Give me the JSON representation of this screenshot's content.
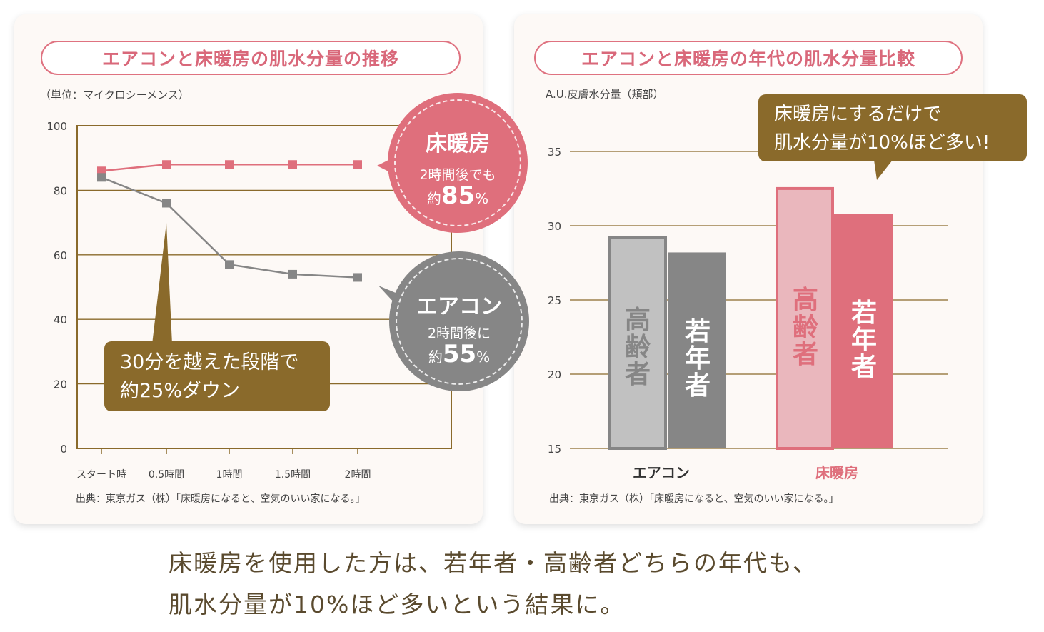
{
  "left": {
    "title": "エアコンと床暖房の肌水分量の推移",
    "unit": "（単位：マイクロシーメンス）",
    "source": "出典：東京ガス（株）「床暖房になると、空気のいい家になる。」",
    "callout": {
      "line1": "30分を越えた段階で",
      "line2": "約25%ダウン"
    },
    "badge_floor": {
      "title": "床暖房",
      "line1": "2時間後でも",
      "prefix": "約",
      "value": "85",
      "suffix": "%"
    },
    "badge_ac": {
      "title": "エアコン",
      "line1": "2時間後に",
      "prefix": "約",
      "value": "55",
      "suffix": "%"
    }
  },
  "right": {
    "title": "エアコンと床暖房の年代の肌水分量比較",
    "unit": "A.U.皮膚水分量（頬部）",
    "source": "出典：東京ガス（株）「床暖房になると、空気のいい家になる。」",
    "callout": {
      "line1": "床暖房にするだけで",
      "line2": "肌水分量が10%ほど多い!"
    },
    "bar_labels": {
      "elderly": "高齢者",
      "young": "若年者"
    }
  },
  "caption": {
    "line1": "床暖房を使用した方は、若年者・高齢者どちらの年代も、",
    "line2": "肌水分量が10%ほど多いという結果に。"
  },
  "colors": {
    "pink": "#df6f7c",
    "pink_light": "#eab7bd",
    "gray": "#868686",
    "gray_light": "#c1c1c1",
    "brown": "#8a6a2b",
    "grid": "#8a6a2b"
  },
  "chart_data": [
    {
      "type": "line",
      "title": "エアコンと床暖房の肌水分量の推移",
      "ylabel": "（単位：マイクロシーメンス）",
      "ylim": [
        0,
        100
      ],
      "yticks": [
        0,
        20,
        40,
        60,
        80,
        100
      ],
      "categories": [
        "スタート時",
        "0.5時間",
        "1時間",
        "1.5時間",
        "2時間"
      ],
      "series": [
        {
          "name": "床暖房",
          "color": "#df6f7c",
          "values": [
            86,
            88,
            88,
            88,
            88
          ]
        },
        {
          "name": "エアコン",
          "color": "#868686",
          "values": [
            84,
            76,
            57,
            54,
            53
          ]
        }
      ],
      "grid": true
    },
    {
      "type": "bar",
      "title": "エアコンと床暖房の年代の肌水分量比較",
      "ylabel": "A.U.皮膚水分量（頬部）",
      "ylim": [
        15,
        35
      ],
      "yticks": [
        15,
        20,
        25,
        30,
        35
      ],
      "categories": [
        "エアコン",
        "床暖房"
      ],
      "series": [
        {
          "name": "高齢者",
          "values": [
            29.3,
            32.6
          ]
        },
        {
          "name": "若年者",
          "values": [
            28.2,
            30.8
          ]
        }
      ],
      "grid": true
    }
  ]
}
